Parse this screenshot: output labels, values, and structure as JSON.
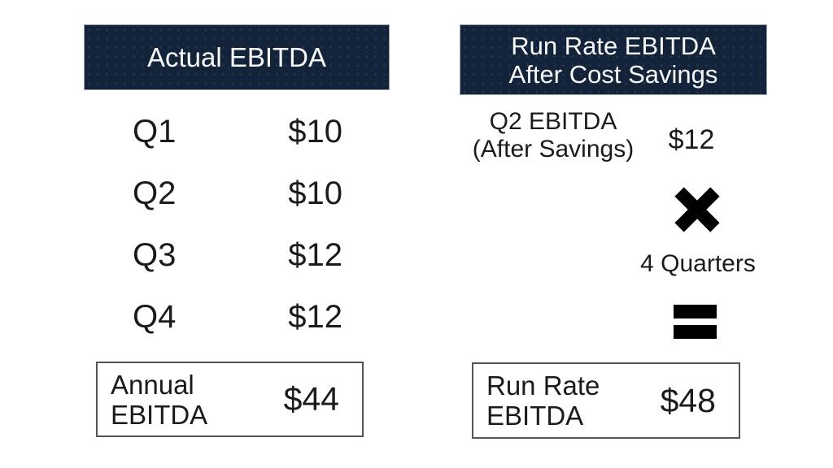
{
  "slide": {
    "left_panel": {
      "header_label": "Actual EBITDA",
      "rows": [
        {
          "label": "Q1",
          "value": "$10"
        },
        {
          "label": "Q2",
          "value": "$10"
        },
        {
          "label": "Q3",
          "value": "$12"
        },
        {
          "label": "Q4",
          "value": "$12"
        }
      ],
      "total": {
        "label_line1": "Annual",
        "label_line2": "EBITDA",
        "value": "$44"
      }
    },
    "right_panel": {
      "header_line1": "Run Rate EBITDA",
      "header_line2": "After Cost Savings",
      "item": {
        "label_line1": "Q2 EBITDA",
        "label_line2": "(After Savings)",
        "value": "$12"
      },
      "multiplier_label": "4 Quarters",
      "operators": {
        "multiply": "×",
        "equals": "="
      },
      "total": {
        "label_line1": "Run Rate",
        "label_line2": "EBITDA",
        "value": "$48"
      }
    },
    "icons": {
      "multiply-icon": "heavy multiplication x (two rotated black bars)",
      "equals-icon": "heavy equals sign (two stacked black bars)"
    },
    "colors": {
      "header_background": "#13243a",
      "header_text": "#f7f8f9",
      "body_text": "#1b1b1b",
      "box_border": "#545454",
      "operator_black": "#000000",
      "page_background": "#ffffff"
    }
  }
}
